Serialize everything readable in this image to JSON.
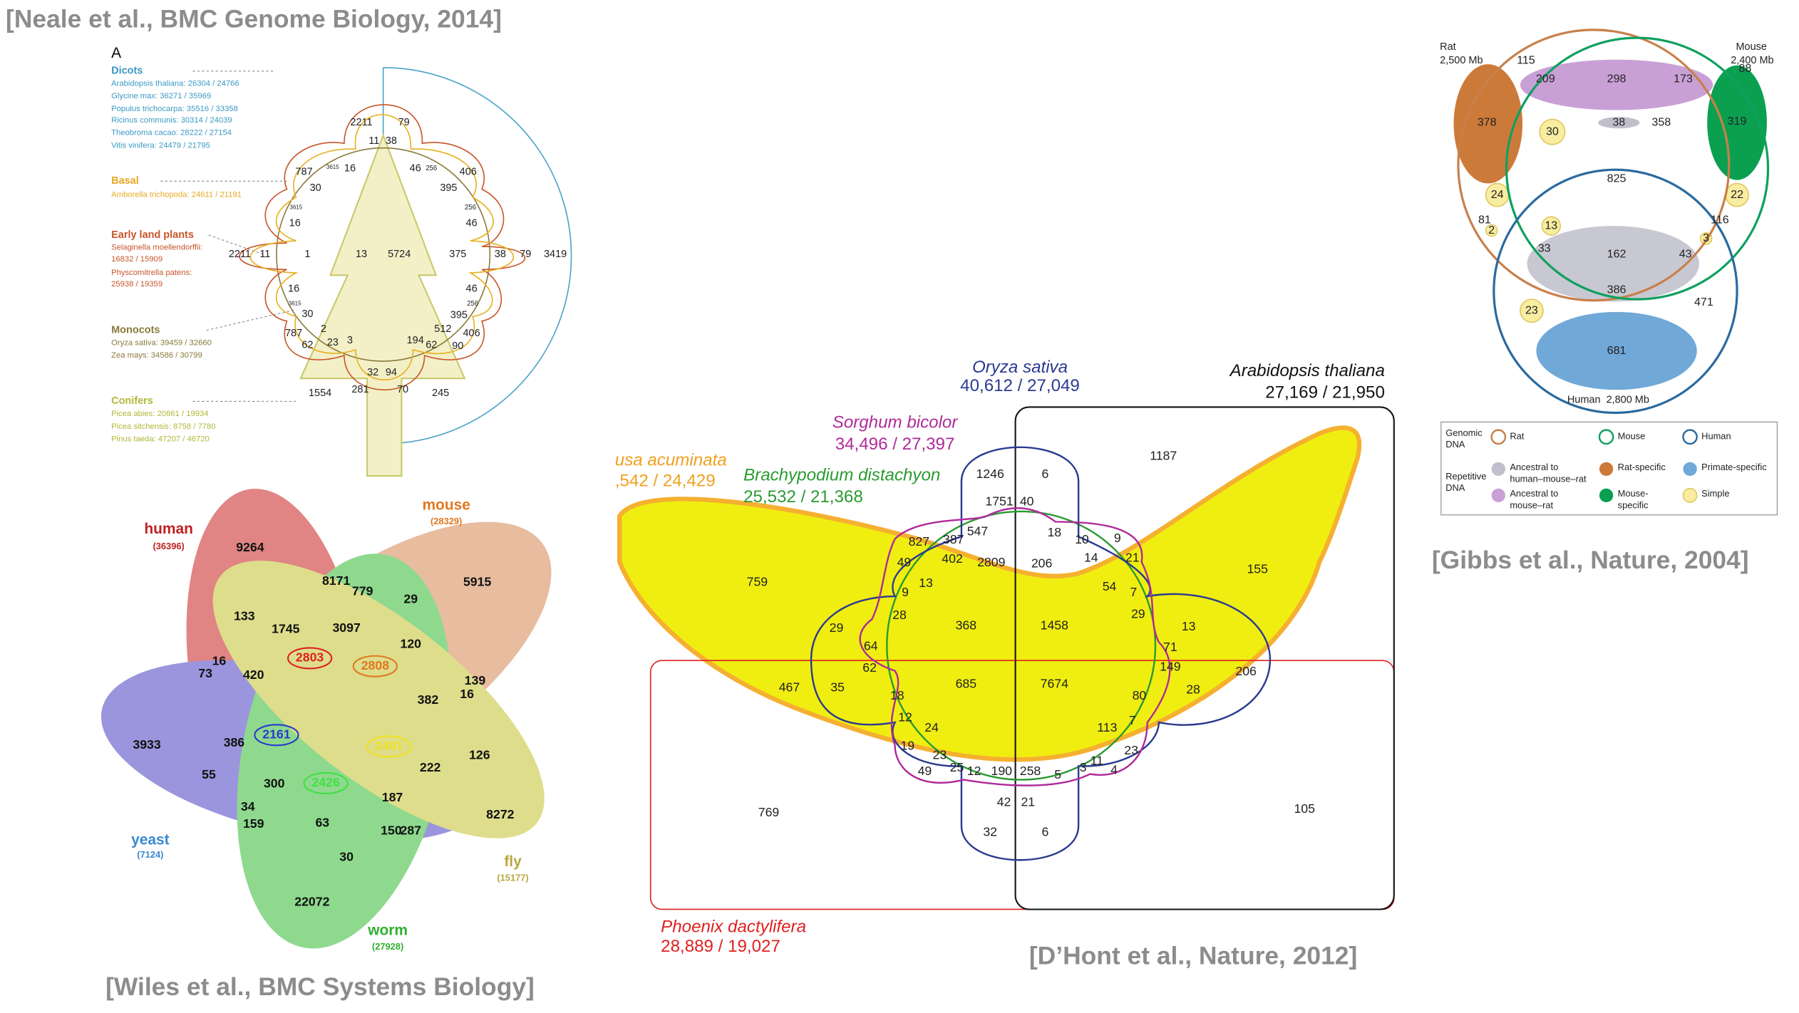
{
  "citations": [
    "[Neale et al., BMC Genome Biology, 2014]",
    "[Wiles et al., BMC Systems Biology]",
    "[D’Hont et al., Nature, 2012]",
    "[Gibbs et al., Nature, 2004]"
  ],
  "neale": {
    "panel": "A",
    "legend": [
      "Dicots",
      "Arabidopsis thaliana: 26304 / 24766",
      "Glycine max: 36271 / 35969",
      "Populus trichocarpa: 35516 / 33358",
      "Ricinus communis: 30314 / 24039",
      "Theobroma cacao: 28222 / 27154",
      "Vitis vinifera: 24479 / 21795",
      "Basal",
      "Amborella trichopoda: 24611 / 21191",
      "Early land plants",
      "Selaginella moellendorffii:",
      "16832 / 15909",
      "Physcomitrella patens:",
      "25938 / 19359",
      "Monocots",
      "Oryza sativa: 39459 / 32660",
      "Zea mays: 34586 / 30799",
      "Conifers",
      "Picea abies: 20861 / 19934",
      "Picea sitchensis: 8758 / 7780",
      "Pinus taeda: 47207 / 46720"
    ],
    "numbers": [
      2211,
      79,
      11,
      38,
      787,
      3615,
      16,
      46,
      256,
      406,
      30,
      395,
      256,
      3615,
      16,
      46,
      2211,
      11,
      1,
      13,
      5724,
      375,
      38,
      79,
      3419,
      16,
      46,
      3615,
      256,
      30,
      395,
      787,
      2,
      512,
      406,
      62,
      23,
      3,
      194,
      62,
      90,
      32,
      94,
      1554,
      281,
      70,
      245
    ]
  },
  "wiles": {
    "labels": [
      "human",
      "(36396)",
      "mouse",
      "(28329)",
      "yeast",
      "(7124)",
      "worm",
      "(27928)",
      "fly",
      "(15177)"
    ],
    "numbers": [
      9264,
      5915,
      8171,
      779,
      29,
      133,
      1745,
      3097,
      120,
      2803,
      2808,
      16,
      73,
      420,
      139,
      16,
      382,
      2161,
      3933,
      386,
      2401,
      126,
      55,
      222,
      300,
      2426,
      187,
      34,
      159,
      63,
      150,
      287,
      8272,
      30,
      22072
    ]
  },
  "dhont": {
    "labels": [
      "Oryza sativa",
      "40,612 / 27,049",
      "Arabidopsis thaliana",
      "27,169 / 21,950",
      "Sorghum bicolor",
      "34,496 / 27,397",
      "Brachypodium distachyon",
      "25,532 / 21,368",
      "usa acuminata",
      ",542 / 24,429",
      "Phoenix dactylifera",
      "28,889 / 19,027"
    ],
    "numbers": [
      1187,
      1246,
      6,
      1751,
      40,
      155,
      827,
      387,
      547,
      18,
      10,
      9,
      49,
      402,
      2809,
      206,
      14,
      21,
      759,
      13,
      54,
      9,
      7,
      28,
      29,
      29,
      368,
      1458,
      13,
      64,
      71,
      62,
      149,
      206,
      467,
      35,
      685,
      7674,
      28,
      18,
      80,
      12,
      7,
      24,
      113,
      19,
      23,
      23,
      11,
      49,
      25,
      12,
      190,
      258,
      5,
      3,
      4,
      769,
      105,
      42,
      21,
      32,
      6
    ]
  },
  "gibbs": {
    "labels": [
      "Rat",
      "2,500 Mb",
      "Mouse",
      "2,400 Mb",
      "Human",
      "2,800 Mb"
    ],
    "numbers": [
      115,
      209,
      298,
      173,
      88,
      378,
      38,
      358,
      319,
      30,
      825,
      24,
      22,
      81,
      2,
      13,
      116,
      3,
      33,
      162,
      43,
      386,
      471,
      23,
      681
    ],
    "legend": [
      "Genomic",
      "DNA",
      "Rat",
      "Mouse",
      "Human",
      "Repetitive",
      "DNA",
      "Ancestral to",
      "human–mouse–rat",
      "Rat-specific",
      "Primate-specific",
      "Ancestral to",
      "mouse–rat",
      "Mouse-",
      "specific",
      "Simple"
    ]
  }
}
